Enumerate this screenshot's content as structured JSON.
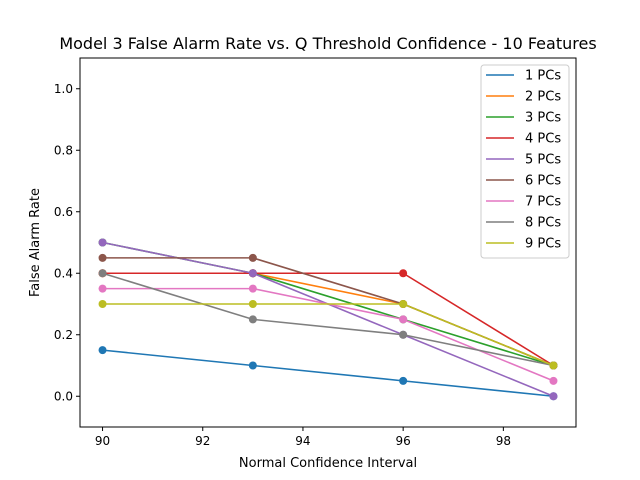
{
  "chart_data": {
    "type": "line",
    "title": "Model 3 False Alarm Rate vs. Q Threshold Confidence - 10 Features",
    "xlabel": "Normal Confidence Interval",
    "ylabel": "False Alarm Rate",
    "xlim": [
      89.55,
      99.45
    ],
    "ylim": [
      -0.1,
      1.1
    ],
    "xticks": [
      90,
      92,
      94,
      96,
      98
    ],
    "yticks": [
      0.0,
      0.2,
      0.4,
      0.6,
      0.8,
      1.0
    ],
    "xtick_labels": [
      "90",
      "92",
      "94",
      "96",
      "98"
    ],
    "ytick_labels": [
      "0.0",
      "0.2",
      "0.4",
      "0.6",
      "0.8",
      "1.0"
    ],
    "grid": false,
    "legend_position": "top-right",
    "x": [
      90,
      93,
      96,
      99
    ],
    "series": [
      {
        "name": "1 PCs",
        "color": "#1f77b4",
        "values": [
          0.15,
          0.1,
          0.05,
          0.0
        ]
      },
      {
        "name": "2 PCs",
        "color": "#ff7f0e",
        "values": [
          0.4,
          0.4,
          0.3,
          0.1
        ]
      },
      {
        "name": "3 PCs",
        "color": "#2ca02c",
        "values": [
          0.5,
          0.4,
          0.25,
          0.1
        ]
      },
      {
        "name": "4 PCs",
        "color": "#d62728",
        "values": [
          0.4,
          0.4,
          0.4,
          0.1
        ]
      },
      {
        "name": "5 PCs",
        "color": "#9467bd",
        "values": [
          0.5,
          0.4,
          0.2,
          0.0
        ]
      },
      {
        "name": "6 PCs",
        "color": "#8c564b",
        "values": [
          0.45,
          0.45,
          0.3,
          0.1
        ]
      },
      {
        "name": "7 PCs",
        "color": "#e377c2",
        "values": [
          0.35,
          0.35,
          0.25,
          0.05
        ]
      },
      {
        "name": "8 PCs",
        "color": "#7f7f7f",
        "values": [
          0.4,
          0.25,
          0.2,
          0.1
        ]
      },
      {
        "name": "9 PCs",
        "color": "#bcbd22",
        "values": [
          0.3,
          0.3,
          0.3,
          0.1
        ]
      }
    ]
  }
}
